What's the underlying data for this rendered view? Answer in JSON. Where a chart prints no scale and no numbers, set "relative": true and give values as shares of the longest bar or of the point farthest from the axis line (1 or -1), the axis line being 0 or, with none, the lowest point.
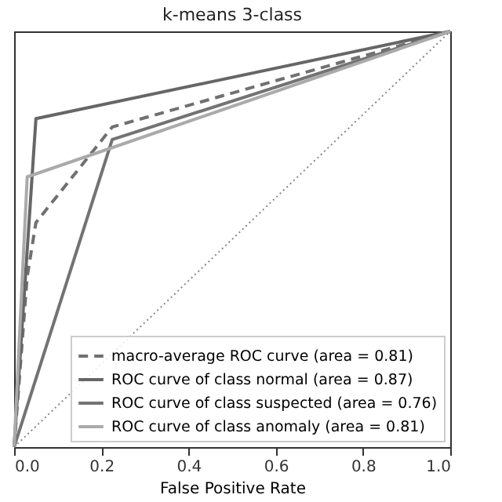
{
  "chart_data": {
    "type": "line",
    "title": "k-means 3-class",
    "xlabel": "False Positive Rate",
    "relative": true,
    "xlim": [
      0,
      1
    ],
    "xticks": [
      {
        "value": 0,
        "label": "0.0"
      },
      {
        "value": 0.2,
        "label": "0.2"
      },
      {
        "value": 0.4,
        "label": "0.4"
      },
      {
        "value": 0.6,
        "label": "0.6"
      },
      {
        "value": 0.8,
        "label": "0.8"
      },
      {
        "value": 1,
        "label": "1.0"
      }
    ],
    "tick_labels": "x",
    "grid": false,
    "legend": "bottom right",
    "marker": "none",
    "series": [
      {
        "name": "macro-average ROC curve (area = 0.81)",
        "color": "#707070",
        "line_style": "dashed",
        "x": [
          0,
          0.03,
          0.05,
          0.225,
          1
        ],
        "values": [
          0,
          0.41,
          0.54,
          0.77,
          1
        ]
      },
      {
        "name": "ROC curve of class normal (area = 0.87)",
        "color": "#666666",
        "line_style": "solid",
        "x": [
          0,
          0.05,
          1
        ],
        "values": [
          0,
          0.79,
          1
        ]
      },
      {
        "name": "ROC curve of class suspected (area = 0.76)",
        "color": "#737373",
        "line_style": "solid",
        "x": [
          0,
          0.225,
          1
        ],
        "values": [
          0,
          0.74,
          1
        ]
      },
      {
        "name": "ROC curve of class anomaly (area = 0.81)",
        "color": "#aaaaaa",
        "line_style": "solid",
        "x": [
          0,
          0.03,
          1
        ],
        "values": [
          0,
          0.65,
          1
        ]
      },
      {
        "color": "#888888",
        "line_style": "dotted",
        "x": [
          0,
          1
        ],
        "values": [
          0,
          1
        ]
      }
    ]
  }
}
